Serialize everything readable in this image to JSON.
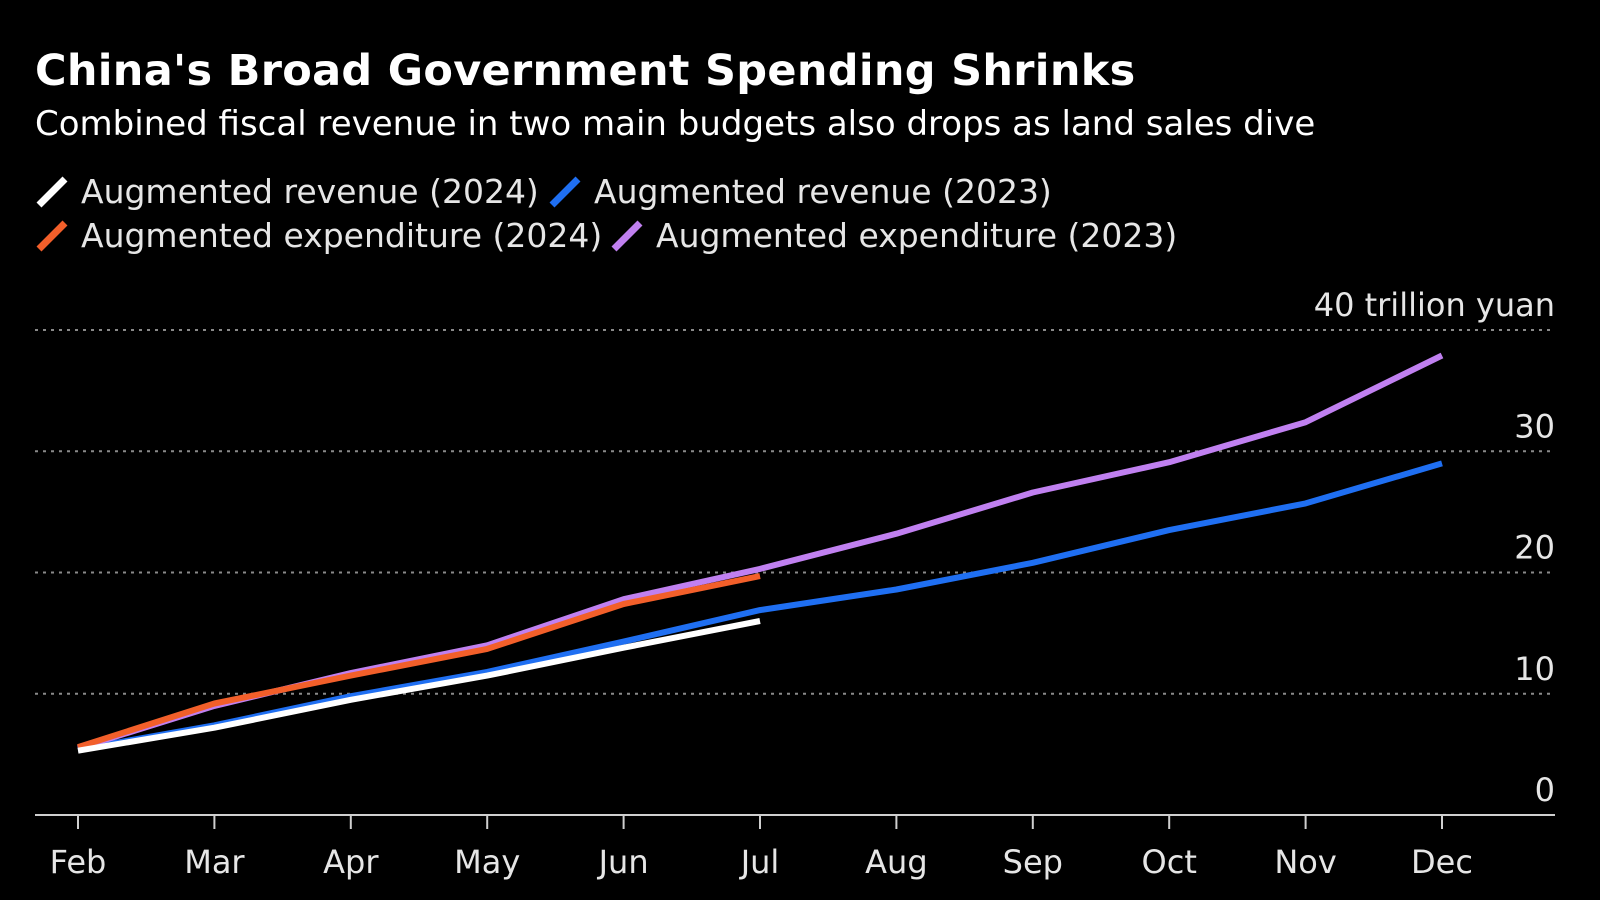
{
  "title": "China's Broad Government Spending Shrinks",
  "subtitle": "Combined fiscal revenue in two main budgets also drops as land sales dive",
  "chart_data": {
    "type": "line",
    "title": "China's Broad Government Spending Shrinks",
    "subtitle": "Combined fiscal revenue in two main budgets also drops as land sales dive",
    "unit_label": "40 trillion yuan",
    "categories": [
      "Feb",
      "Mar",
      "Apr",
      "May",
      "Jun",
      "Jul",
      "Aug",
      "Sep",
      "Oct",
      "Nov",
      "Dec"
    ],
    "ylim": [
      0,
      40
    ],
    "yticks": [
      {
        "value": 40,
        "label": "40 trillion yuan"
      },
      {
        "value": 30,
        "label": "30"
      },
      {
        "value": 20,
        "label": "20"
      },
      {
        "value": 10,
        "label": "10"
      },
      {
        "value": 0,
        "label": "0"
      }
    ],
    "grid": true,
    "legend_position": "top-left",
    "series": [
      {
        "name": "Augmented revenue (2024)",
        "color": "#ffffff",
        "values": [
          5.3,
          7.2,
          9.5,
          11.5,
          13.8,
          16.0,
          null,
          null,
          null,
          null,
          null
        ]
      },
      {
        "name": "Augmented revenue (2023)",
        "color": "#1f6ff2",
        "values": [
          5.4,
          7.4,
          9.8,
          11.8,
          14.3,
          16.9,
          18.6,
          20.8,
          23.5,
          25.7,
          29.0
        ]
      },
      {
        "name": "Augmented expenditure (2024)",
        "color": "#f25f2a",
        "values": [
          5.6,
          9.2,
          11.5,
          13.7,
          17.4,
          19.7,
          null,
          null,
          null,
          null,
          null
        ]
      },
      {
        "name": "Augmented expenditure (2023)",
        "color": "#c080f0",
        "values": [
          5.5,
          9.0,
          11.7,
          14.0,
          17.8,
          20.3,
          23.2,
          26.6,
          29.1,
          32.4,
          37.9
        ]
      }
    ]
  }
}
